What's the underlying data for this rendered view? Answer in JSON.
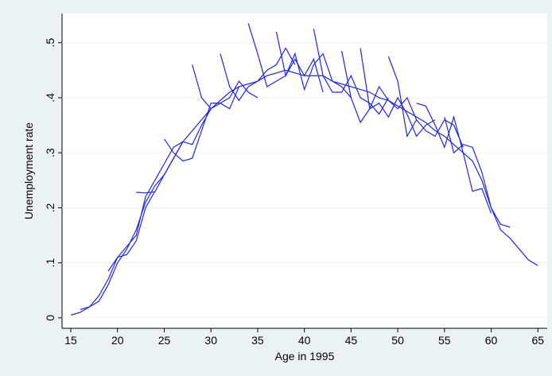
{
  "chart_data": {
    "type": "line",
    "x_label": "Age in 1995",
    "y_label": "Unemployment rate",
    "xlim": [
      14.06,
      66.0
    ],
    "ylim": [
      -0.019,
      0.553
    ],
    "xticks": [
      15,
      20,
      25,
      30,
      35,
      40,
      45,
      50,
      55,
      60,
      65
    ],
    "yticks": [
      0,
      {
        "value": 0.1,
        "label": ".1"
      },
      {
        "value": 0.2,
        "label": ".2"
      },
      {
        "value": 0.3,
        "label": ".3"
      },
      {
        "value": 0.4,
        "label": ".4"
      },
      {
        "value": 0.5,
        "label": ".5"
      }
    ],
    "grid": true,
    "series": [
      {
        "color": "#2226dc",
        "x": [
          15,
          16,
          17,
          18,
          19,
          20,
          21,
          22,
          23,
          24,
          25,
          26,
          27,
          28,
          29,
          30,
          31,
          32,
          33,
          34,
          35,
          36,
          37,
          38,
          39,
          40,
          41,
          42,
          43,
          44,
          45,
          46,
          47,
          48,
          49,
          50,
          51,
          52,
          53,
          54,
          55,
          56,
          57,
          58,
          59,
          60,
          61,
          62,
          63,
          64,
          65
        ],
        "values": [
          0.005,
          0.01,
          0.02,
          0.03,
          0.06,
          0.1,
          0.125,
          0.16,
          0.21,
          0.24,
          0.26,
          0.29,
          0.32,
          0.34,
          0.36,
          0.38,
          0.395,
          0.41,
          0.42,
          0.425,
          0.43,
          0.44,
          0.445,
          0.45,
          0.445,
          0.44,
          0.44,
          0.44,
          0.43,
          0.425,
          0.42,
          0.415,
          0.41,
          0.4,
          0.395,
          0.385,
          0.375,
          0.365,
          0.355,
          0.34,
          0.33,
          0.315,
          0.3,
          0.285,
          0.25,
          0.2,
          0.16,
          0.145,
          0.125,
          0.105,
          0.095
        ]
      },
      {
        "color": "#2226dc",
        "x": [
          16,
          17,
          18,
          19,
          20,
          21,
          22,
          23,
          24
        ],
        "values": [
          0.015,
          0.02,
          0.04,
          0.07,
          0.11,
          0.115,
          0.14,
          0.2,
          0.23
        ]
      },
      {
        "color": "#2226dc",
        "x": [
          19,
          20,
          21,
          22,
          23,
          24,
          25,
          26,
          27
        ],
        "values": [
          0.085,
          0.11,
          0.13,
          0.15,
          0.22,
          0.25,
          0.28,
          0.31,
          0.32
        ]
      },
      {
        "color": "#2226dc",
        "x": [
          22,
          23,
          24,
          25,
          26,
          27,
          28,
          29,
          30
        ],
        "values": [
          0.228,
          0.227,
          0.229,
          0.26,
          0.29,
          0.32,
          0.315,
          0.35,
          0.38
        ]
      },
      {
        "color": "#2226dc",
        "x": [
          25,
          26,
          27,
          28,
          29,
          30,
          31,
          32,
          33
        ],
        "values": [
          0.325,
          0.3,
          0.285,
          0.29,
          0.34,
          0.39,
          0.39,
          0.38,
          0.42
        ]
      },
      {
        "color": "#2226dc",
        "x": [
          28,
          29,
          30,
          31,
          32,
          33,
          34,
          35
        ],
        "values": [
          0.46,
          0.4,
          0.38,
          0.39,
          0.4,
          0.43,
          0.41,
          0.4
        ]
      },
      {
        "color": "#2226dc",
        "x": [
          31,
          32,
          33,
          34,
          35,
          36,
          37,
          38,
          39
        ],
        "values": [
          0.48,
          0.42,
          0.395,
          0.42,
          0.43,
          0.45,
          0.46,
          0.49,
          0.46
        ]
      },
      {
        "color": "#2226dc",
        "x": [
          34,
          35,
          36,
          37,
          38,
          39,
          40,
          41,
          42
        ],
        "values": [
          0.535,
          0.48,
          0.42,
          0.43,
          0.44,
          0.47,
          0.44,
          0.47,
          0.41
        ]
      },
      {
        "color": "#2226dc",
        "x": [
          37,
          38,
          39,
          40,
          41,
          42,
          43,
          44,
          45
        ],
        "values": [
          0.52,
          0.44,
          0.48,
          0.415,
          0.46,
          0.48,
          0.43,
          0.42,
          0.4
        ]
      },
      {
        "color": "#2226dc",
        "x": [
          41,
          42,
          43,
          44,
          45,
          46,
          47,
          48,
          49
        ],
        "values": [
          0.525,
          0.44,
          0.41,
          0.41,
          0.44,
          0.4,
          0.39,
          0.37,
          0.4
        ]
      },
      {
        "color": "#2226dc",
        "x": [
          44,
          45,
          46,
          47,
          48,
          49,
          50,
          51,
          52
        ],
        "values": [
          0.485,
          0.4,
          0.355,
          0.38,
          0.42,
          0.395,
          0.38,
          0.4,
          0.36
        ]
      },
      {
        "color": "#2226dc",
        "x": [
          46,
          47,
          48,
          49,
          50,
          51,
          52,
          53,
          54
        ],
        "values": [
          0.49,
          0.38,
          0.39,
          0.365,
          0.4,
          0.37,
          0.33,
          0.35,
          0.36
        ]
      },
      {
        "color": "#2226dc",
        "x": [
          49,
          50,
          51,
          52,
          53,
          54,
          55,
          56,
          57
        ],
        "values": [
          0.475,
          0.43,
          0.33,
          0.36,
          0.34,
          0.33,
          0.36,
          0.35,
          0.31
        ]
      },
      {
        "color": "#2226dc",
        "x": [
          52,
          53,
          54,
          55,
          56,
          57,
          58,
          59,
          60
        ],
        "values": [
          0.39,
          0.385,
          0.35,
          0.31,
          0.365,
          0.3,
          0.23,
          0.235,
          0.19
        ]
      },
      {
        "color": "#2226dc",
        "x": [
          55,
          56,
          57,
          58,
          59,
          60,
          61,
          62
        ],
        "values": [
          0.365,
          0.3,
          0.315,
          0.31,
          0.265,
          0.2,
          0.17,
          0.165
        ]
      }
    ]
  }
}
